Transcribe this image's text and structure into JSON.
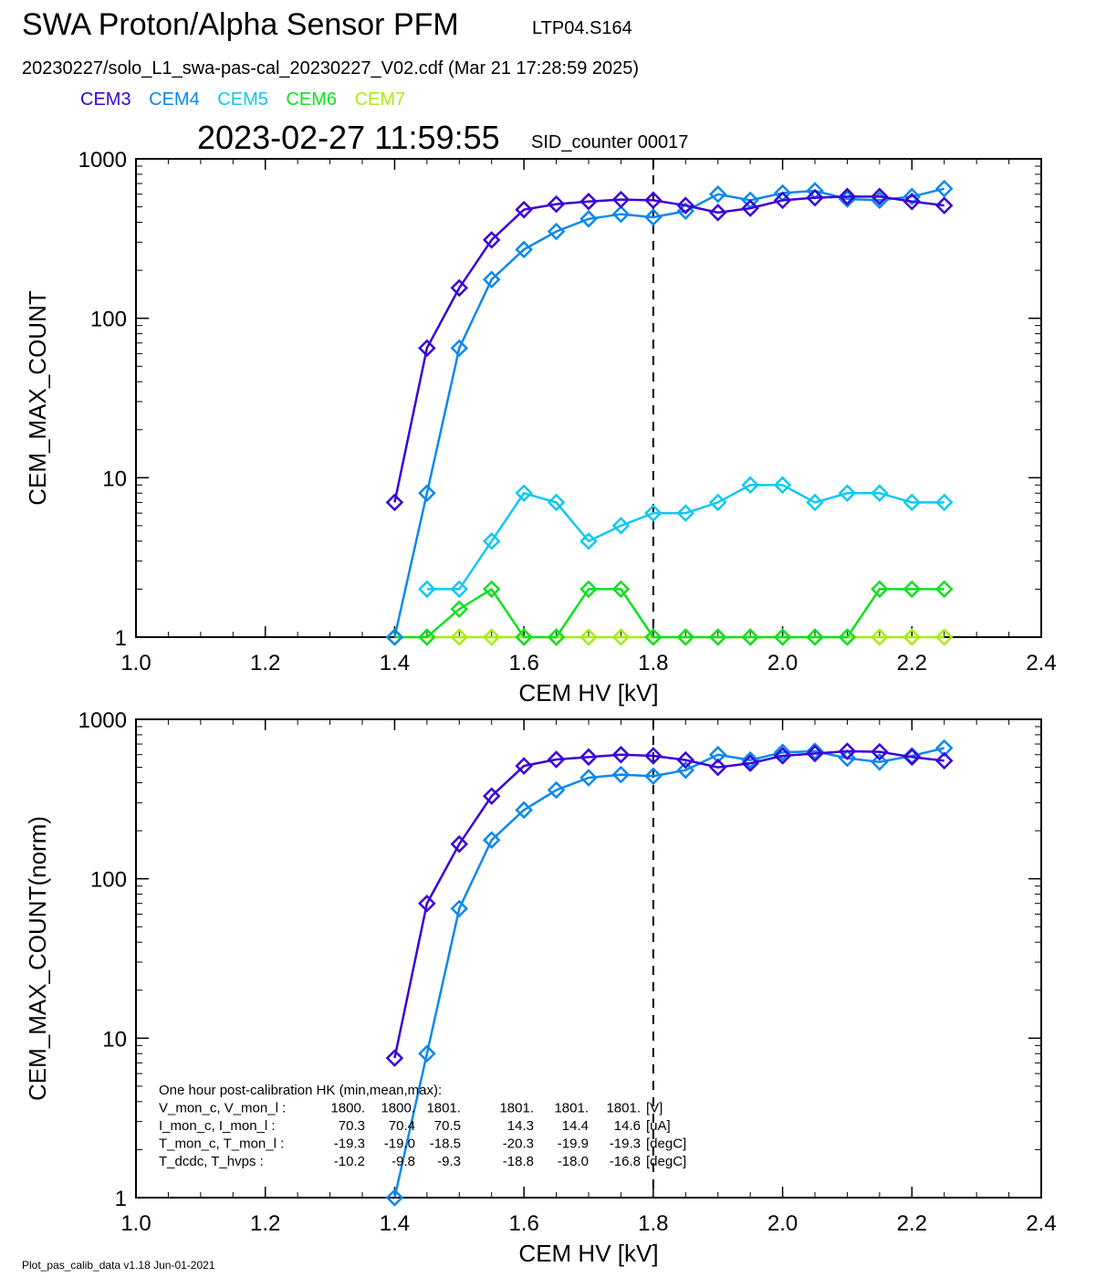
{
  "header": {
    "title": "SWA Proton/Alpha Sensor PFM",
    "subtitle": "LTP04.S164",
    "file_line": "20230227/solo_L1_swa-pas-cal_20230227_V02.cdf  (Mar 21 17:28:59 2025)",
    "timestamp": "2023-02-27 11:59:55",
    "sid_counter": "SID_counter 00017"
  },
  "legend": [
    {
      "label": "CEM3",
      "color": "#3a00d8"
    },
    {
      "label": "CEM4",
      "color": "#0a88ee"
    },
    {
      "label": "CEM5",
      "color": "#10c8f0"
    },
    {
      "label": "CEM6",
      "color": "#10e020"
    },
    {
      "label": "CEM7",
      "color": "#a8ec10"
    }
  ],
  "footer": "Plot_pas_calib_data v1.18 Jun-01-2021",
  "chart_data": [
    {
      "type": "line",
      "xlabel": "CEM HV [kV]",
      "ylabel": "CEM_MAX_COUNT",
      "xlim": [
        1.0,
        2.4
      ],
      "ylim": [
        1,
        1000
      ],
      "yscale": "log",
      "xticks": [
        "1.0",
        "1.2",
        "1.4",
        "1.6",
        "1.8",
        "2.0",
        "2.2",
        "2.4"
      ],
      "yticks": [
        "1",
        "10",
        "100",
        "1000"
      ],
      "reference_line_x": 1.8,
      "x": [
        1.4,
        1.45,
        1.5,
        1.55,
        1.6,
        1.65,
        1.7,
        1.75,
        1.8,
        1.85,
        1.9,
        1.95,
        2.0,
        2.05,
        2.1,
        2.15,
        2.2,
        2.25
      ],
      "series": [
        {
          "name": "CEM3",
          "color": "#3a00d8",
          "values": [
            7,
            65,
            155,
            310,
            480,
            520,
            540,
            555,
            550,
            510,
            460,
            490,
            550,
            570,
            580,
            580,
            540,
            510
          ]
        },
        {
          "name": "CEM4",
          "color": "#0a88ee",
          "values": [
            1,
            8,
            65,
            175,
            270,
            350,
            420,
            450,
            430,
            470,
            600,
            550,
            610,
            630,
            560,
            550,
            580,
            650
          ]
        },
        {
          "name": "CEM5",
          "color": "#10c8f0",
          "values": [
            null,
            2,
            2,
            4,
            8,
            7,
            4,
            5,
            6,
            6,
            7,
            9,
            9,
            7,
            8,
            8,
            7,
            7
          ]
        },
        {
          "name": "CEM6",
          "color": "#10e020",
          "values": [
            1,
            1,
            1.5,
            2,
            1,
            1,
            2,
            2,
            1,
            1,
            1,
            1,
            1,
            1,
            1,
            2,
            2,
            2
          ]
        },
        {
          "name": "CEM7",
          "color": "#a8ec10",
          "values": [
            1,
            1,
            1,
            1,
            1,
            1,
            1,
            1,
            1,
            1,
            1,
            1,
            1,
            1,
            1,
            1,
            1,
            1
          ]
        }
      ]
    },
    {
      "type": "line",
      "xlabel": "CEM HV [kV]",
      "ylabel": "CEM_MAX_COUNT(norm)",
      "xlim": [
        1.0,
        2.4
      ],
      "ylim": [
        1,
        1000
      ],
      "yscale": "log",
      "xticks": [
        "1.0",
        "1.2",
        "1.4",
        "1.6",
        "1.8",
        "2.0",
        "2.2",
        "2.4"
      ],
      "yticks": [
        "1",
        "10",
        "100",
        "1000"
      ],
      "reference_line_x": 1.8,
      "x": [
        1.4,
        1.45,
        1.5,
        1.55,
        1.6,
        1.65,
        1.7,
        1.75,
        1.8,
        1.85,
        1.9,
        1.95,
        2.0,
        2.05,
        2.1,
        2.15,
        2.2,
        2.25
      ],
      "series": [
        {
          "name": "CEM3",
          "color": "#3a00d8",
          "values": [
            7.5,
            70,
            165,
            330,
            510,
            560,
            580,
            600,
            590,
            555,
            500,
            530,
            590,
            610,
            630,
            625,
            580,
            550
          ]
        },
        {
          "name": "CEM4",
          "color": "#0a88ee",
          "values": [
            1,
            8,
            65,
            175,
            270,
            360,
            430,
            450,
            440,
            480,
            600,
            555,
            620,
            630,
            570,
            540,
            590,
            660
          ]
        }
      ],
      "annotation": {
        "title": "One hour post-calibration HK (min,mean,max):",
        "rows": [
          {
            "label": "V_mon_c, V_mon_l :",
            "c": [
              "1800.",
              "1800.",
              "1801."
            ],
            "l": [
              "1801.",
              "1801.",
              "1801."
            ],
            "unit": "[V]"
          },
          {
            "label": "I_mon_c,  I_mon_l :",
            "c": [
              "70.3",
              "70.4",
              "70.5"
            ],
            "l": [
              "14.3",
              "14.4",
              "14.6"
            ],
            "unit": "[uA]"
          },
          {
            "label": "T_mon_c, T_mon_l :",
            "c": [
              "-19.3",
              "-19.0",
              "-18.5"
            ],
            "l": [
              "-20.3",
              "-19.9",
              "-19.3"
            ],
            "unit": "[degC]"
          },
          {
            "label": "T_dcdc,    T_hvps :",
            "c": [
              "-10.2",
              "-9.8",
              "-9.3"
            ],
            "l": [
              "-18.8",
              "-18.0",
              "-16.8"
            ],
            "unit": "[degC]"
          }
        ]
      }
    }
  ]
}
